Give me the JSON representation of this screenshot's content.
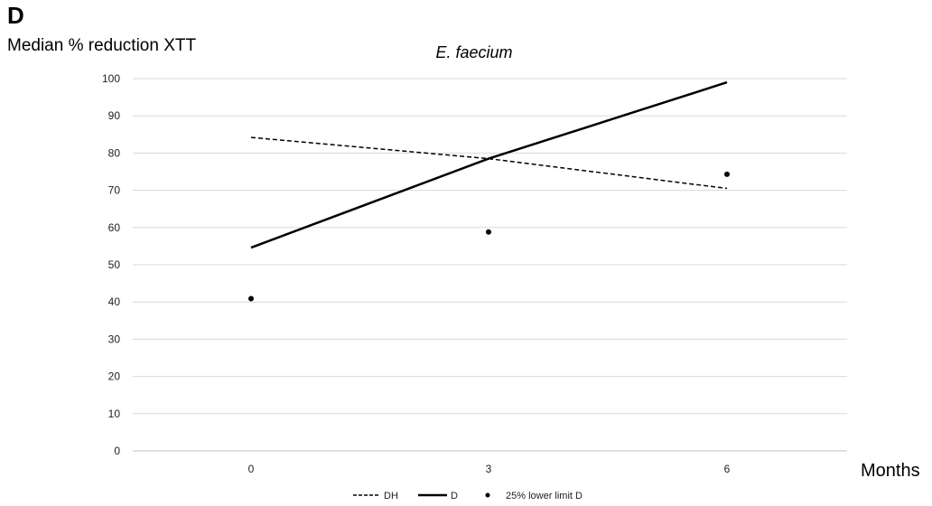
{
  "panel_label": "D",
  "chart_data": {
    "type": "line",
    "title": "E. faecium",
    "ylabel": "Median % reduction XTT",
    "xlabel": "Months",
    "x": [
      0,
      3,
      6
    ],
    "xticks": [
      "0",
      "3",
      "6"
    ],
    "ylim": [
      0,
      100
    ],
    "yticks": [
      0,
      10,
      20,
      30,
      40,
      50,
      60,
      70,
      80,
      90,
      100
    ],
    "grid": "horizontal",
    "legend_position": "bottom",
    "series": [
      {
        "name": "DH",
        "style": "dashed",
        "values": [
          84.2,
          78.5,
          70.5
        ],
        "color": "#000000"
      },
      {
        "name": "D",
        "style": "solid",
        "values": [
          54.6,
          78.5,
          99.0
        ],
        "color": "#000000"
      },
      {
        "name": "25% lower limit D",
        "style": "points",
        "values": [
          40.9,
          58.8,
          74.3
        ],
        "color": "#000000"
      }
    ]
  }
}
